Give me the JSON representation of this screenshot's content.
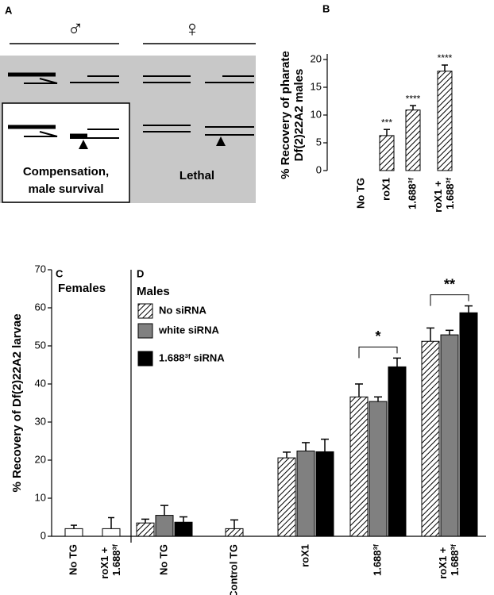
{
  "panel_a": {
    "label": "A",
    "male_symbol": "♂",
    "female_symbol": "♀",
    "compensation_label": [
      "Compensation,",
      "male survival"
    ],
    "lethal_label": "Lethal"
  },
  "chart_data": [
    {
      "type": "bar",
      "title": "B",
      "ylabel": [
        "% Recovery of pharate",
        "Df(2)22A2 males"
      ],
      "categories": [
        "No TG",
        "roX1",
        "1.688³ᶠ",
        "roX1 + 1.688³ᶠ"
      ],
      "values": [
        0,
        6.3,
        10.9,
        17.9
      ],
      "errors": [
        0,
        1.1,
        0.8,
        1.1
      ],
      "annotations": [
        null,
        "***",
        "****",
        "****"
      ],
      "pattern": "hatch",
      "color": "#ffffff",
      "ylim": [
        0,
        21
      ],
      "yticks": [
        0,
        5,
        10,
        15,
        20
      ]
    },
    {
      "type": "bar",
      "title": "C",
      "subtitle": "Females",
      "ylabel": [
        "% Recovery of Df(2)22A2 larvae"
      ],
      "categories": [
        "No TG",
        "roX1 + 1.688³ᶠ"
      ],
      "values": [
        2.0,
        2.0
      ],
      "errors": [
        0.9,
        2.9
      ],
      "color": "#ffffff",
      "ylim": [
        0,
        70
      ],
      "yticks": [
        0,
        10,
        20,
        30,
        40,
        50,
        60,
        70
      ]
    },
    {
      "type": "grouped_bar",
      "title": "D",
      "subtitle": "Males",
      "categories": [
        "No TG",
        "Control TG",
        "roX1",
        "1.688³ᶠ",
        "roX1 + 1.688³ᶠ"
      ],
      "series": [
        {
          "name": "No siRNA",
          "color": "#ffffff",
          "pattern": "hatch",
          "values": [
            3.5,
            2.0,
            20.6,
            36.6,
            51.2
          ],
          "errors": [
            1.0,
            2.3,
            1.5,
            3.4,
            3.5
          ]
        },
        {
          "name": "white siRNA",
          "color": "#808080",
          "values": [
            5.5,
            null,
            22.4,
            35.4,
            52.9
          ],
          "errors": [
            2.6,
            null,
            2.2,
            1.2,
            1.2
          ]
        },
        {
          "name": "1.688³ᶠ siRNA",
          "color": "#000000",
          "values": [
            3.7,
            null,
            22.2,
            44.5,
            58.7
          ],
          "errors": [
            1.4,
            null,
            3.3,
            2.3,
            1.8
          ]
        }
      ],
      "annotations": [
        null,
        null,
        null,
        "*",
        "**"
      ],
      "ylim": [
        0,
        70
      ]
    }
  ]
}
